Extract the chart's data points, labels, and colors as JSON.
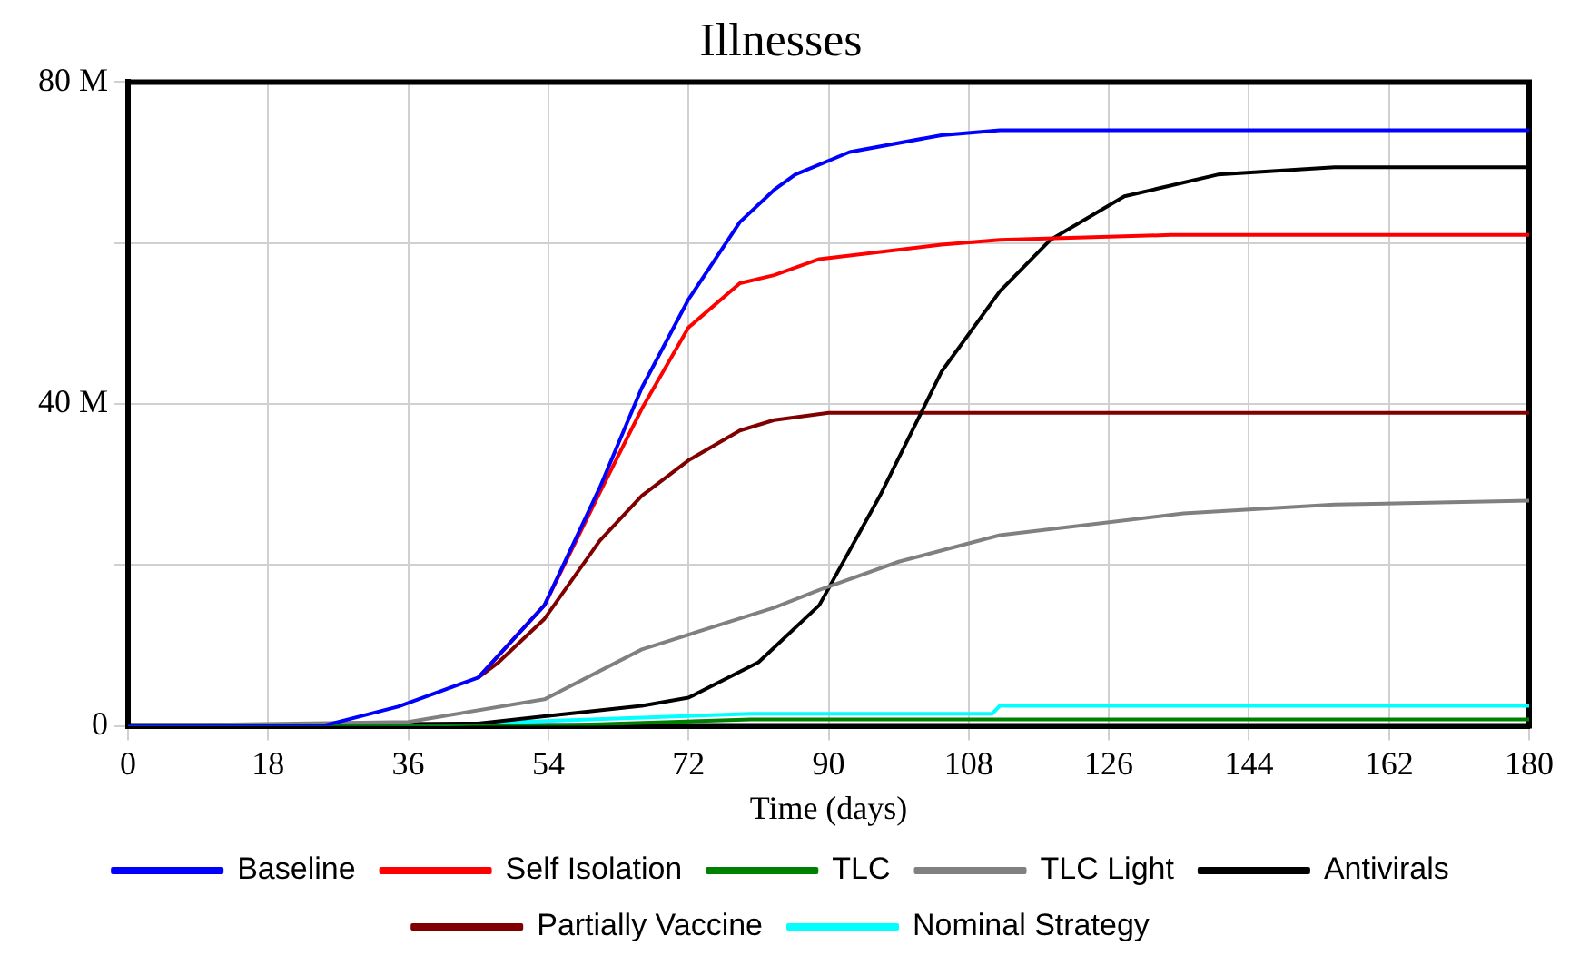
{
  "chart_data": {
    "type": "line",
    "title": "Illnesses",
    "xlabel": "Time (days)",
    "xlim": [
      0,
      180
    ],
    "xticks": [
      0,
      18,
      36,
      54,
      72,
      90,
      108,
      126,
      144,
      162,
      180
    ],
    "ylim": [
      0,
      80
    ],
    "yticks": [
      {
        "value": 0,
        "label": "0"
      },
      {
        "value": 20,
        "label": null
      },
      {
        "value": 40,
        "label": "40 M"
      },
      {
        "value": 60,
        "label": null
      },
      {
        "value": 80,
        "label": "80 M"
      }
    ],
    "grid": true,
    "legend": "bottom",
    "marker": "none",
    "line_style": "solid",
    "series": [
      {
        "name": "Baseline",
        "color": "#0000ff",
        "x": [
          0,
          25,
          34.7,
          45,
          53.5,
          60.6,
          66,
          72,
          78.6,
          83,
          85.7,
          92.7,
          104.5,
          112,
          180
        ],
        "values": [
          0,
          0,
          2.4,
          6,
          15,
          29.6,
          42,
          53,
          62.6,
          66.6,
          68.5,
          71.3,
          73.4,
          74,
          74
        ]
      },
      {
        "name": "Self Isolation",
        "color": "#ff0000",
        "x": [
          45,
          53.5,
          60.6,
          66,
          72,
          78.6,
          83,
          88.8,
          104.5,
          112,
          134,
          180
        ],
        "values": [
          6,
          15,
          29,
          39.4,
          49.5,
          55,
          56,
          58,
          59.8,
          60.4,
          61,
          61
        ]
      },
      {
        "name": "TLC",
        "color": "#008000",
        "x": [
          0,
          54,
          80,
          180
        ],
        "values": [
          0,
          0,
          0.8,
          0.8
        ]
      },
      {
        "name": "TLC Light",
        "color": "#808080",
        "x": [
          0,
          36,
          53.5,
          66,
          83,
          88.8,
          99,
          112,
          135.6,
          155,
          180
        ],
        "values": [
          0,
          0.5,
          3.3,
          9.5,
          14.7,
          16.9,
          20.4,
          23.7,
          26.4,
          27.5,
          28
        ]
      },
      {
        "name": "Antivirals",
        "color": "#000000",
        "x": [
          0,
          45,
          53.5,
          66,
          72,
          81,
          88.8,
          96.6,
          104.5,
          112,
          118.5,
          128,
          140,
          155,
          180
        ],
        "values": [
          0,
          0.3,
          1.2,
          2.5,
          3.5,
          7.9,
          15,
          28.6,
          44,
          54,
          60.4,
          65.8,
          68.5,
          69.4,
          69.4
        ]
      },
      {
        "name": "Partially Vaccine",
        "color": "#800000",
        "x": [
          45,
          47.6,
          53.5,
          60.6,
          66,
          72,
          78.6,
          83,
          90,
          180
        ],
        "values": [
          6,
          7.9,
          13.3,
          23,
          28.6,
          33,
          36.7,
          38,
          38.9,
          38.9
        ]
      },
      {
        "name": "Nominal Strategy",
        "color": "#00ffff",
        "x": [
          0,
          36,
          80,
          111,
          112,
          180
        ],
        "values": [
          0,
          0,
          1.5,
          1.5,
          2.5,
          2.5
        ]
      }
    ]
  }
}
